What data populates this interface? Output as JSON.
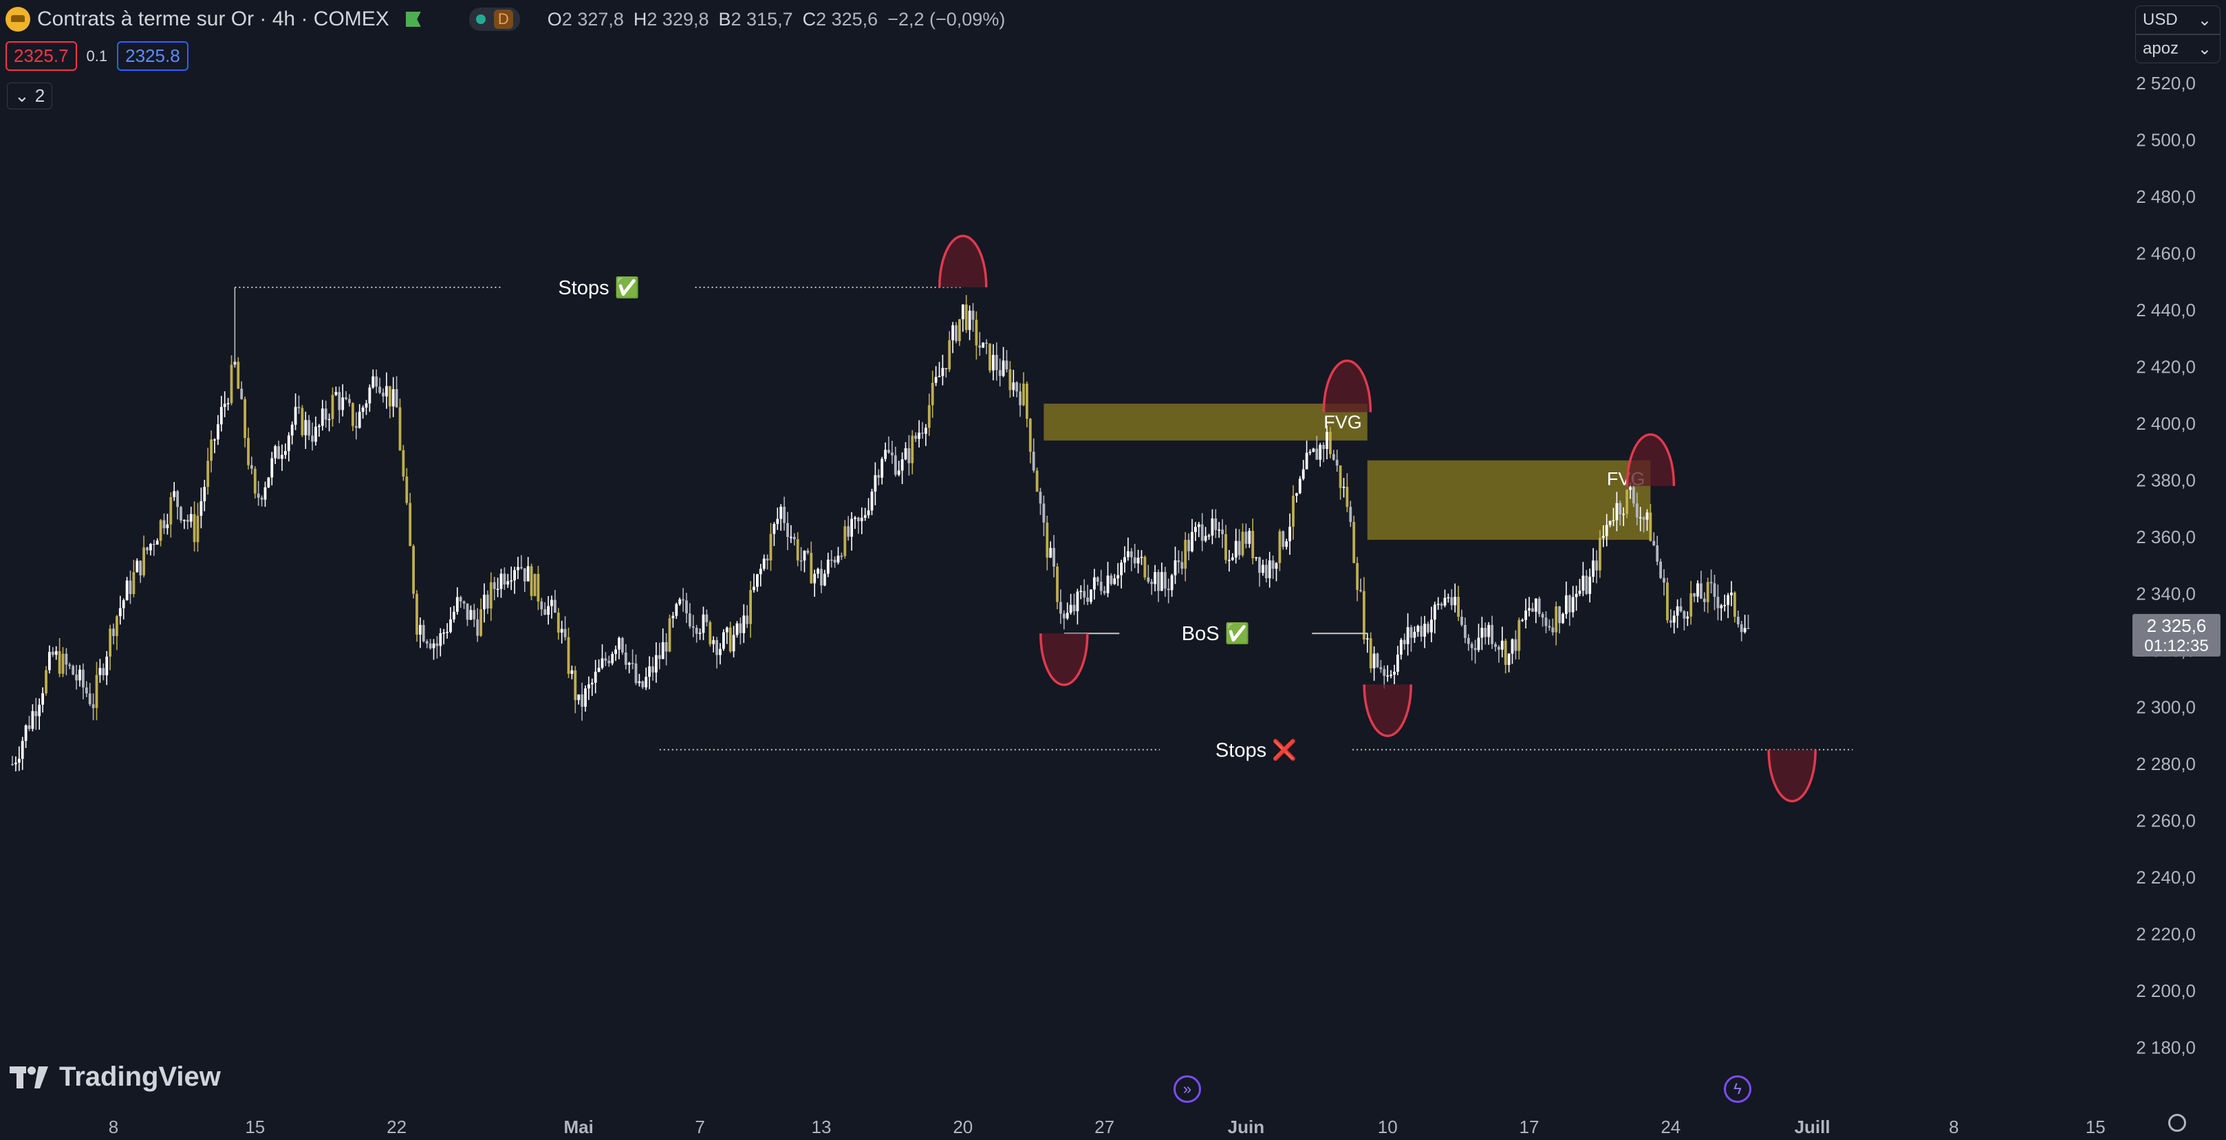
{
  "header": {
    "symbol_title": "Contrats à terme sur Or · 4h · COMEX",
    "interval_badge": "D",
    "ohlc": [
      {
        "key": "O",
        "value": "2 327,8"
      },
      {
        "key": "H",
        "value": "2 329,8"
      },
      {
        "key": "B",
        "value": "2 315,7"
      },
      {
        "key": "C",
        "value": "2 325,6"
      }
    ],
    "change": "−2,2 (−0,09%)",
    "sell_price": "2325.7",
    "spread": "0.1",
    "buy_price": "2325.8",
    "indicators_count": "2"
  },
  "controls": {
    "currency": "USD",
    "scale_mode": "apoz"
  },
  "branding": {
    "logo_text": "TradingView"
  },
  "icons": {
    "replay": "replay-icon",
    "alert": "lightning-icon",
    "settings": "gear-icon",
    "flag": "flag-icon",
    "symbol_logo": "gold-bars-icon"
  },
  "colors": {
    "background": "#141823",
    "candle_up": "#ffffff",
    "candle_down": "#b2b5be",
    "candle_gap": "#bfae4d",
    "fvg_fill": "#7a7020",
    "annotation_red": "#e03a4e",
    "price_label": "#b2b5be"
  },
  "chart_data": {
    "type": "candlestick",
    "title": "Contrats à terme sur Or · 4h · COMEX",
    "ylim": [
      2170,
      2530
    ],
    "y_ticks": [
      2520,
      2500,
      2480,
      2460,
      2440,
      2420,
      2400,
      2380,
      2360,
      2340,
      2320,
      2300,
      2280,
      2260,
      2240,
      2220,
      2200,
      2180
    ],
    "y_tick_labels": [
      "2 520,0",
      "2 500,0",
      "2 480,0",
      "2 460,0",
      "2 440,0",
      "2 420,0",
      "2 400,0",
      "2 380,0",
      "2 360,0",
      "2 340,0",
      "2 320,0",
      "2 300,0",
      "2 280,0",
      "2 260,0",
      "2 240,0",
      "2 220,0",
      "2 200,0",
      "2 180,0"
    ],
    "x_ticks": [
      {
        "date": "2024-04-08",
        "label": "8"
      },
      {
        "date": "2024-04-15",
        "label": "15"
      },
      {
        "date": "2024-04-22",
        "label": "22"
      },
      {
        "date": "2024-05-01",
        "label": "Mai"
      },
      {
        "date": "2024-05-07",
        "label": "7"
      },
      {
        "date": "2024-05-13",
        "label": "13"
      },
      {
        "date": "2024-05-20",
        "label": "20"
      },
      {
        "date": "2024-05-27",
        "label": "27"
      },
      {
        "date": "2024-06-03",
        "label": "Juin"
      },
      {
        "date": "2024-06-10",
        "label": "10"
      },
      {
        "date": "2024-06-17",
        "label": "17"
      },
      {
        "date": "2024-06-24",
        "label": "24"
      },
      {
        "date": "2024-07-01",
        "label": "Juill"
      },
      {
        "date": "2024-07-08",
        "label": "8"
      },
      {
        "date": "2024-07-15",
        "label": "15"
      }
    ],
    "last_price": {
      "value": 2325.6,
      "label": "2 325,6",
      "countdown": "01:12:35"
    },
    "close_path": [
      [
        "2024-04-03",
        2280
      ],
      [
        "2024-04-04",
        2298
      ],
      [
        "2024-04-05",
        2318
      ],
      [
        "2024-04-06",
        2312
      ],
      [
        "2024-04-07",
        2302
      ],
      [
        "2024-04-08",
        2330
      ],
      [
        "2024-04-09",
        2346
      ],
      [
        "2024-04-10",
        2360
      ],
      [
        "2024-04-11",
        2374
      ],
      [
        "2024-04-12",
        2362
      ],
      [
        "2024-04-13",
        2395
      ],
      [
        "2024-04-14",
        2420
      ],
      [
        "2024-04-15",
        2372
      ],
      [
        "2024-04-16",
        2388
      ],
      [
        "2024-04-17",
        2402
      ],
      [
        "2024-04-18",
        2396
      ],
      [
        "2024-04-19",
        2410
      ],
      [
        "2024-04-20",
        2400
      ],
      [
        "2024-04-21",
        2418
      ],
      [
        "2024-04-22",
        2405
      ],
      [
        "2024-04-23",
        2330
      ],
      [
        "2024-04-24",
        2322
      ],
      [
        "2024-04-25",
        2336
      ],
      [
        "2024-04-26",
        2330
      ],
      [
        "2024-04-27",
        2345
      ],
      [
        "2024-04-28",
        2352
      ],
      [
        "2024-04-29",
        2340
      ],
      [
        "2024-04-30",
        2330
      ],
      [
        "2024-05-01",
        2300
      ],
      [
        "2024-05-02",
        2312
      ],
      [
        "2024-05-03",
        2326
      ],
      [
        "2024-05-04",
        2305
      ],
      [
        "2024-05-05",
        2318
      ],
      [
        "2024-05-06",
        2335
      ],
      [
        "2024-05-07",
        2330
      ],
      [
        "2024-05-08",
        2322
      ],
      [
        "2024-05-09",
        2326
      ],
      [
        "2024-05-10",
        2348
      ],
      [
        "2024-05-11",
        2370
      ],
      [
        "2024-05-12",
        2352
      ],
      [
        "2024-05-13",
        2345
      ],
      [
        "2024-05-14",
        2358
      ],
      [
        "2024-05-15",
        2365
      ],
      [
        "2024-05-16",
        2390
      ],
      [
        "2024-05-17",
        2385
      ],
      [
        "2024-05-18",
        2400
      ],
      [
        "2024-05-19",
        2420
      ],
      [
        "2024-05-20",
        2440
      ],
      [
        "2024-05-21",
        2425
      ],
      [
        "2024-05-22",
        2418
      ],
      [
        "2024-05-23",
        2410
      ],
      [
        "2024-05-24",
        2362
      ],
      [
        "2024-05-25",
        2330
      ],
      [
        "2024-05-26",
        2340
      ],
      [
        "2024-05-27",
        2345
      ],
      [
        "2024-05-28",
        2352
      ],
      [
        "2024-05-29",
        2350
      ],
      [
        "2024-05-30",
        2342
      ],
      [
        "2024-05-31",
        2356
      ],
      [
        "2024-06-01",
        2365
      ],
      [
        "2024-06-02",
        2355
      ],
      [
        "2024-06-03",
        2360
      ],
      [
        "2024-06-04",
        2348
      ],
      [
        "2024-06-05",
        2362
      ],
      [
        "2024-06-06",
        2385
      ],
      [
        "2024-06-07",
        2395
      ],
      [
        "2024-06-08",
        2372
      ],
      [
        "2024-06-09",
        2320
      ],
      [
        "2024-06-10",
        2312
      ],
      [
        "2024-06-11",
        2325
      ],
      [
        "2024-06-12",
        2330
      ],
      [
        "2024-06-13",
        2340
      ],
      [
        "2024-06-14",
        2322
      ],
      [
        "2024-06-15",
        2328
      ],
      [
        "2024-06-16",
        2318
      ],
      [
        "2024-06-17",
        2335
      ],
      [
        "2024-06-18",
        2330
      ],
      [
        "2024-06-19",
        2338
      ],
      [
        "2024-06-20",
        2344
      ],
      [
        "2024-06-21",
        2368
      ],
      [
        "2024-06-22",
        2375
      ],
      [
        "2024-06-23",
        2362
      ],
      [
        "2024-06-24",
        2330
      ],
      [
        "2024-06-25",
        2338
      ],
      [
        "2024-06-26",
        2340
      ],
      [
        "2024-06-27",
        2336
      ],
      [
        "2024-06-28",
        2325.6
      ]
    ],
    "zones": [
      {
        "type": "fvg",
        "label": "FVG",
        "from": "2024-05-24",
        "to": "2024-06-09",
        "low": 2394,
        "high": 2407
      },
      {
        "type": "fvg",
        "label": "FVG",
        "from": "2024-06-09",
        "to": "2024-06-23",
        "low": 2359,
        "high": 2387
      }
    ],
    "levels": [
      {
        "label": "Stops ✅",
        "price": 2448,
        "from": "2024-04-14",
        "to": "2024-05-20",
        "style": "dotted"
      },
      {
        "label": "BoS ✅",
        "price": 2326,
        "from": "2024-05-25",
        "to": "2024-06-09",
        "style": "solid"
      },
      {
        "label": "Stops ❌",
        "price": 2285,
        "from": "2024-05-05",
        "to": "2024-07-03",
        "style": "dotted"
      }
    ],
    "markers": [
      {
        "date": "2024-05-20",
        "price": 2448,
        "side": "top"
      },
      {
        "date": "2024-05-25",
        "price": 2326,
        "side": "bottom"
      },
      {
        "date": "2024-06-08",
        "price": 2404,
        "side": "top"
      },
      {
        "date": "2024-06-10",
        "price": 2308,
        "side": "bottom"
      },
      {
        "date": "2024-06-23",
        "price": 2378,
        "side": "top"
      },
      {
        "date": "2024-06-30",
        "price": 2285,
        "side": "bottom"
      }
    ]
  }
}
